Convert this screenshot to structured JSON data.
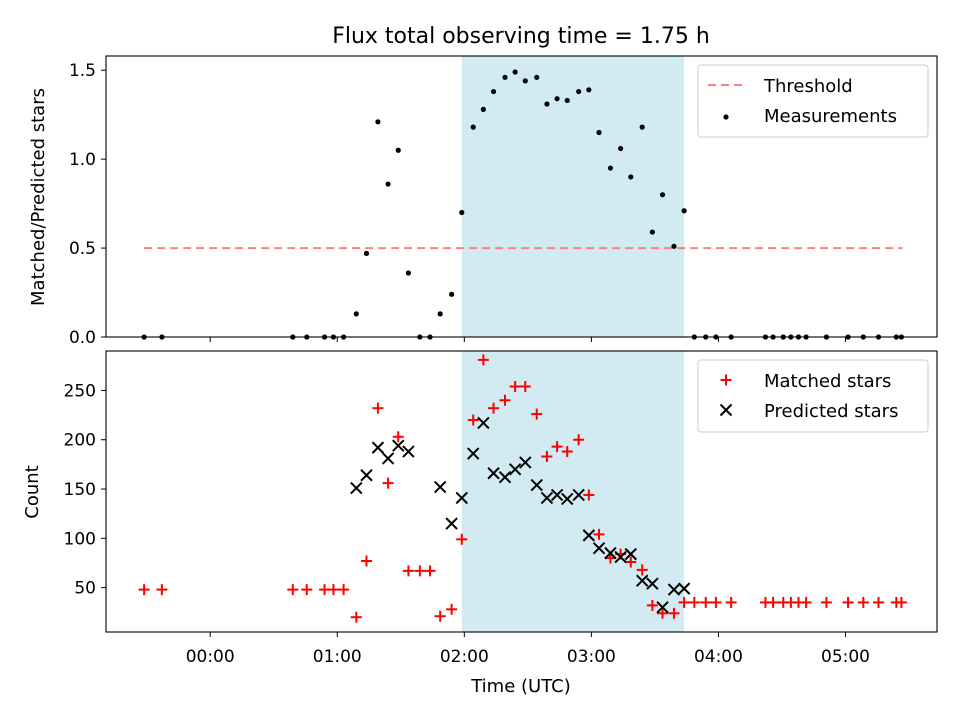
{
  "chart_data": {
    "title": "Flux total observing time = 1.75 h",
    "xlabel": "Time (UTC)",
    "xlim_hours": [
      -0.82,
      5.72
    ],
    "xticks": [
      {
        "v": 0,
        "label": "00:00"
      },
      {
        "v": 1,
        "label": "01:00"
      },
      {
        "v": 2,
        "label": "02:00"
      },
      {
        "v": 3,
        "label": "03:00"
      },
      {
        "v": 4,
        "label": "04:00"
      },
      {
        "v": 5,
        "label": "05:00"
      }
    ],
    "shaded_interval_hours": [
      1.98,
      3.73
    ],
    "shade_color": "#add8e6",
    "panels": [
      {
        "type": "scatter",
        "ylabel": "Matched/Predicted stars",
        "ylim": [
          0,
          1.58
        ],
        "yticks": [
          {
            "v": 0,
            "label": "0.0"
          },
          {
            "v": 0.5,
            "label": "0.5"
          },
          {
            "v": 1.0,
            "label": "1.0"
          },
          {
            "v": 1.5,
            "label": "1.5"
          }
        ],
        "legend_position": "top-right",
        "series": [
          {
            "name": "Threshold",
            "kind": "hline",
            "y": 0.5,
            "x_range": [
              -0.52,
              5.45
            ],
            "color": "#ff7f7f",
            "dashed": true
          },
          {
            "name": "Measurements",
            "kind": "dots",
            "color": "#000000",
            "points": [
              [
                -0.52,
                0
              ],
              [
                -0.38,
                0
              ],
              [
                0.65,
                0
              ],
              [
                0.76,
                0
              ],
              [
                0.9,
                0
              ],
              [
                0.97,
                0
              ],
              [
                1.05,
                0
              ],
              [
                1.15,
                0.13
              ],
              [
                1.23,
                0.47
              ],
              [
                1.32,
                1.21
              ],
              [
                1.4,
                0.86
              ],
              [
                1.48,
                1.05
              ],
              [
                1.56,
                0.36
              ],
              [
                1.65,
                0
              ],
              [
                1.73,
                0
              ],
              [
                1.81,
                0.13
              ],
              [
                1.9,
                0.24
              ],
              [
                1.98,
                0.7
              ],
              [
                2.07,
                1.18
              ],
              [
                2.15,
                1.28
              ],
              [
                2.23,
                1.38
              ],
              [
                2.32,
                1.46
              ],
              [
                2.4,
                1.49
              ],
              [
                2.48,
                1.44
              ],
              [
                2.57,
                1.46
              ],
              [
                2.65,
                1.31
              ],
              [
                2.73,
                1.34
              ],
              [
                2.81,
                1.33
              ],
              [
                2.9,
                1.38
              ],
              [
                2.98,
                1.39
              ],
              [
                3.06,
                1.15
              ],
              [
                3.15,
                0.95
              ],
              [
                3.23,
                1.06
              ],
              [
                3.31,
                0.9
              ],
              [
                3.4,
                1.18
              ],
              [
                3.48,
                0.59
              ],
              [
                3.56,
                0.8
              ],
              [
                3.65,
                0.51
              ],
              [
                3.73,
                0.71
              ],
              [
                3.81,
                0
              ],
              [
                3.9,
                0
              ],
              [
                3.98,
                0
              ],
              [
                4.1,
                0
              ],
              [
                4.37,
                0
              ],
              [
                4.43,
                0
              ],
              [
                4.51,
                0
              ],
              [
                4.57,
                0
              ],
              [
                4.63,
                0
              ],
              [
                4.69,
                0
              ],
              [
                4.85,
                0
              ],
              [
                5.02,
                0
              ],
              [
                5.14,
                0
              ],
              [
                5.26,
                0
              ],
              [
                5.4,
                0
              ],
              [
                5.44,
                0
              ]
            ]
          }
        ]
      },
      {
        "type": "scatter",
        "ylabel": "Count",
        "ylim": [
          5,
          290
        ],
        "yticks": [
          {
            "v": 50,
            "label": "50"
          },
          {
            "v": 100,
            "label": "100"
          },
          {
            "v": 150,
            "label": "150"
          },
          {
            "v": 200,
            "label": "200"
          },
          {
            "v": 250,
            "label": "250"
          }
        ],
        "legend_position": "top-right",
        "series": [
          {
            "name": "Matched stars",
            "kind": "plus",
            "color": "#ff0000",
            "points": [
              [
                -0.52,
                48
              ],
              [
                -0.38,
                48
              ],
              [
                0.65,
                48
              ],
              [
                0.76,
                48
              ],
              [
                0.9,
                48
              ],
              [
                0.97,
                48
              ],
              [
                1.05,
                48
              ],
              [
                1.15,
                20
              ],
              [
                1.23,
                77
              ],
              [
                1.32,
                232
              ],
              [
                1.4,
                156
              ],
              [
                1.48,
                203
              ],
              [
                1.56,
                67
              ],
              [
                1.65,
                67
              ],
              [
                1.73,
                67
              ],
              [
                1.81,
                21
              ],
              [
                1.9,
                28
              ],
              [
                1.98,
                99
              ],
              [
                2.07,
                220
              ],
              [
                2.15,
                281
              ],
              [
                2.23,
                232
              ],
              [
                2.32,
                240
              ],
              [
                2.4,
                254
              ],
              [
                2.48,
                254
              ],
              [
                2.57,
                226
              ],
              [
                2.65,
                183
              ],
              [
                2.73,
                193
              ],
              [
                2.81,
                188
              ],
              [
                2.9,
                200
              ],
              [
                2.98,
                144
              ],
              [
                3.06,
                104
              ],
              [
                3.15,
                80
              ],
              [
                3.23,
                84
              ],
              [
                3.31,
                76
              ],
              [
                3.4,
                68
              ],
              [
                3.48,
                32
              ],
              [
                3.56,
                24
              ],
              [
                3.65,
                24
              ],
              [
                3.73,
                35
              ],
              [
                3.81,
                35
              ],
              [
                3.9,
                35
              ],
              [
                3.98,
                35
              ],
              [
                4.1,
                35
              ],
              [
                4.37,
                35
              ],
              [
                4.43,
                35
              ],
              [
                4.51,
                35
              ],
              [
                4.57,
                35
              ],
              [
                4.63,
                35
              ],
              [
                4.69,
                35
              ],
              [
                4.85,
                35
              ],
              [
                5.02,
                35
              ],
              [
                5.14,
                35
              ],
              [
                5.26,
                35
              ],
              [
                5.4,
                35
              ],
              [
                5.44,
                35
              ]
            ]
          },
          {
            "name": "Predicted stars",
            "kind": "x",
            "color": "#000000",
            "points": [
              [
                1.15,
                151
              ],
              [
                1.23,
                164
              ],
              [
                1.32,
                192
              ],
              [
                1.4,
                181
              ],
              [
                1.48,
                194
              ],
              [
                1.56,
                188
              ],
              [
                1.81,
                152
              ],
              [
                1.9,
                115
              ],
              [
                1.98,
                141
              ],
              [
                2.07,
                186
              ],
              [
                2.15,
                217
              ],
              [
                2.23,
                166
              ],
              [
                2.32,
                162
              ],
              [
                2.4,
                170
              ],
              [
                2.48,
                177
              ],
              [
                2.57,
                154
              ],
              [
                2.65,
                141
              ],
              [
                2.73,
                144
              ],
              [
                2.81,
                140
              ],
              [
                2.9,
                144
              ],
              [
                2.98,
                103
              ],
              [
                3.06,
                90
              ],
              [
                3.15,
                85
              ],
              [
                3.23,
                81
              ],
              [
                3.31,
                84
              ],
              [
                3.4,
                57
              ],
              [
                3.48,
                54
              ],
              [
                3.56,
                30
              ],
              [
                3.65,
                48
              ],
              [
                3.73,
                49
              ]
            ]
          }
        ]
      }
    ]
  }
}
